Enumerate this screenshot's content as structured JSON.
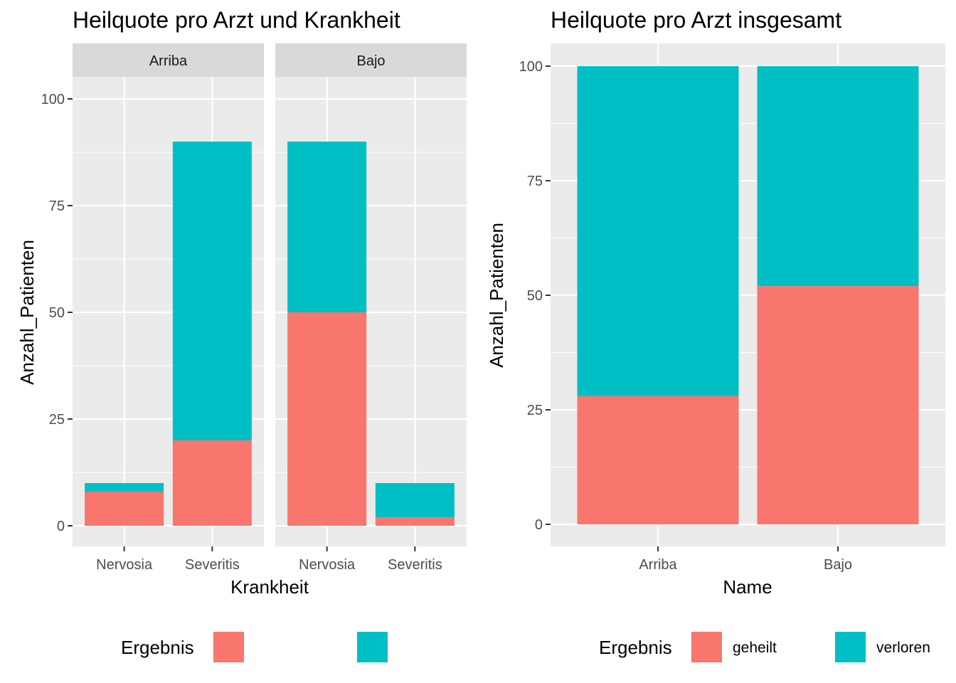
{
  "chart_data": [
    {
      "type": "bar",
      "stacked": true,
      "faceted": true,
      "title": "Heilquote pro Arzt und Krankheit",
      "xlabel": "Krankheit",
      "ylabel": "Anzahl_Patienten",
      "ylim": [
        0,
        110
      ],
      "yticks": [
        0,
        25,
        50,
        75,
        100
      ],
      "grid": true,
      "legend": {
        "title": "Ergebnis",
        "position": "bottom"
      },
      "facets": [
        {
          "label": "Arriba",
          "categories": [
            "Nervosia",
            "Severitis"
          ],
          "series": [
            {
              "name": "geheilt",
              "values": [
                8,
                20
              ]
            },
            {
              "name": "verloren",
              "values": [
                2,
                70
              ]
            }
          ]
        },
        {
          "label": "Bajo",
          "categories": [
            "Nervosia",
            "Severitis"
          ],
          "series": [
            {
              "name": "geheilt",
              "values": [
                50,
                2
              ]
            },
            {
              "name": "verloren",
              "values": [
                40,
                8
              ]
            }
          ]
        }
      ]
    },
    {
      "type": "bar",
      "stacked": true,
      "title": "Heilquote pro Arzt insgesamt",
      "xlabel": "Name",
      "ylabel": "Anzahl_Patienten",
      "ylim": [
        -4.9,
        105
      ],
      "yticks": [
        0,
        25,
        50,
        75,
        100
      ],
      "grid": true,
      "legend": {
        "title": "Ergebnis",
        "position": "bottom"
      },
      "categories": [
        "Arriba",
        "Bajo"
      ],
      "series": [
        {
          "name": "geheilt",
          "values": [
            28,
            52
          ]
        },
        {
          "name": "verloren",
          "values": [
            72,
            48
          ]
        }
      ]
    }
  ],
  "colors": {
    "geheilt": "#F8766D",
    "verloren": "#00BFC4",
    "panel_bg": "#EBEBEB",
    "strip_bg": "#D9D9D9",
    "grid": "#FFFFFF"
  }
}
